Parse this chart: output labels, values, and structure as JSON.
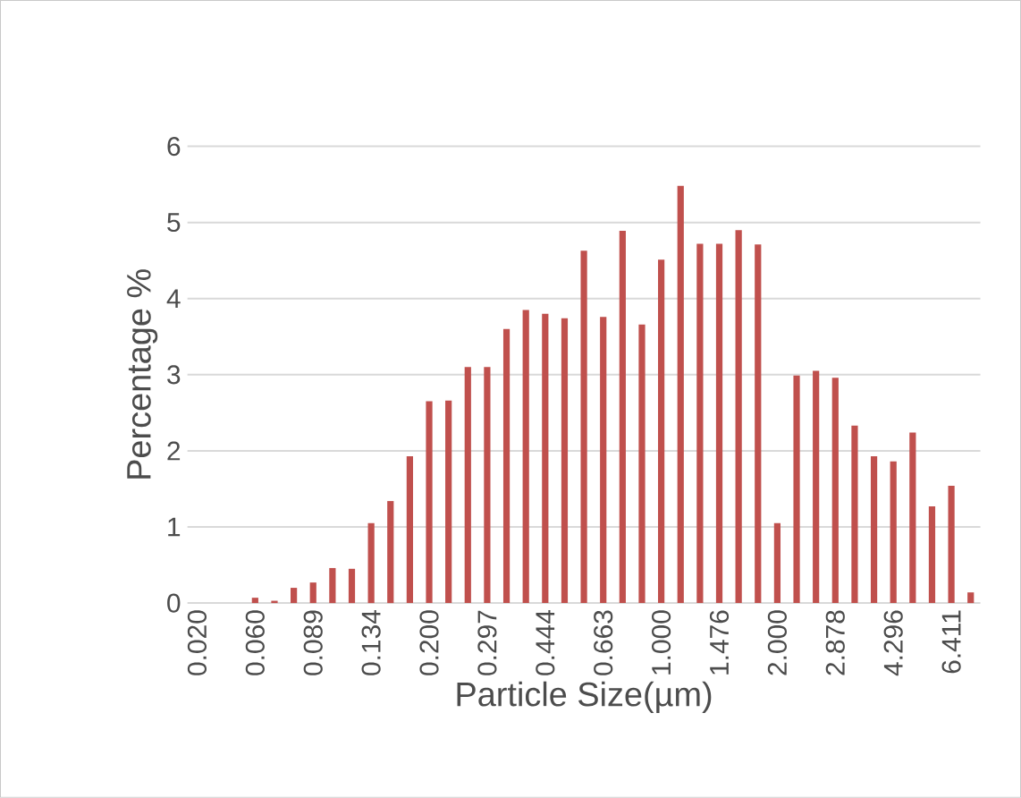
{
  "chart_data": {
    "type": "bar",
    "xlabel": "Particle Size(µm)",
    "ylabel": "Percentage %",
    "categories": [
      "0.020",
      null,
      null,
      "0.060",
      null,
      null,
      "0.089",
      null,
      null,
      "0.134",
      null,
      null,
      "0.200",
      null,
      null,
      "0.297",
      null,
      null,
      "0.444",
      null,
      null,
      "0.663",
      null,
      null,
      "1.000",
      null,
      null,
      "1.476",
      null,
      null,
      "2.000",
      null,
      null,
      "2.878",
      null,
      null,
      "4.296",
      null,
      null,
      "6.411",
      null
    ],
    "values": [
      0,
      0,
      0,
      0.07,
      0.03,
      0.2,
      0.27,
      0.46,
      0.45,
      1.05,
      1.34,
      1.93,
      2.65,
      2.66,
      3.1,
      3.1,
      3.6,
      3.85,
      3.8,
      3.74,
      4.63,
      3.76,
      4.89,
      3.66,
      4.51,
      5.48,
      4.72,
      4.72,
      4.9,
      4.71,
      1.05,
      2.99,
      3.05,
      2.96,
      2.33,
      1.93,
      1.86,
      2.24,
      1.27,
      1.54,
      0.14
    ],
    "color": "#c0504d",
    "ylim": [
      0,
      6
    ],
    "yticks": [
      0,
      1,
      2,
      3,
      4,
      5,
      6
    ],
    "grid": "y"
  }
}
